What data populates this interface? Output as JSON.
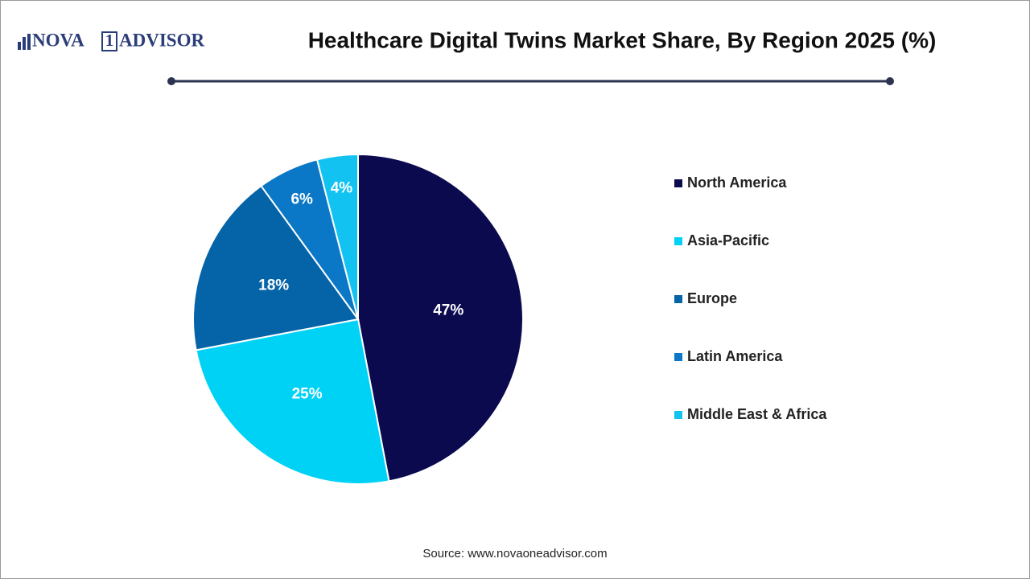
{
  "logo": {
    "left": "NOVA",
    "mark": "1",
    "right": "ADVISOR"
  },
  "source": "Source: www.novaoneadvisor.com",
  "chart_data": {
    "type": "pie",
    "title": "Healthcare Digital Twins Market Share, By Region 2025 (%)",
    "categories": [
      "North America",
      "Asia-Pacific",
      "Europe",
      "Latin America",
      "Middle East & Africa"
    ],
    "values": [
      47,
      25,
      18,
      6,
      4
    ],
    "value_labels": [
      "47%",
      "25%",
      "18%",
      "6%",
      "4%"
    ],
    "colors": [
      "#0b0a4f",
      "#00d2f5",
      "#0563a8",
      "#0a78c6",
      "#12c3f2"
    ],
    "legend": "right"
  }
}
